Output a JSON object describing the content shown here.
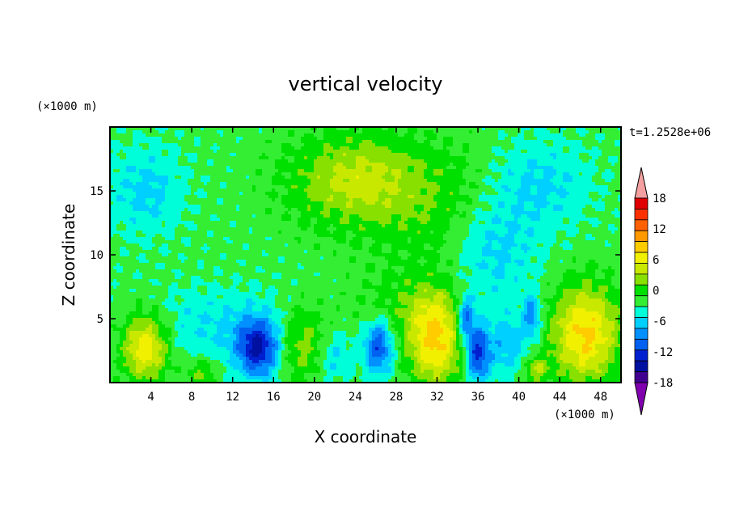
{
  "chart_data": {
    "type": "heatmap",
    "title": "vertical velocity",
    "xlabel": "X coordinate",
    "ylabel": "Z coordinate",
    "x_unit_label": "(×1000 m)",
    "y_unit_label": "(×1000 m)",
    "time_label": "t=1.2528e+06",
    "xlim": [
      0,
      50
    ],
    "ylim": [
      0,
      20
    ],
    "x_ticks": [
      "4",
      "8",
      "12",
      "16",
      "20",
      "24",
      "28",
      "32",
      "36",
      "40",
      "44",
      "48"
    ],
    "y_ticks": [
      "5",
      "10",
      "15"
    ],
    "colorbar": {
      "labels": [
        "18",
        "12",
        "6",
        "0",
        "-6",
        "-12",
        "-18"
      ],
      "levels": [
        -21,
        -18,
        -15,
        -12,
        -9,
        -6,
        -3,
        0,
        3,
        6,
        9,
        12,
        15,
        18,
        21
      ],
      "colors": [
        "#8000b0",
        "#400090",
        "#0010a0",
        "#0020d0",
        "#0060f0",
        "#0090ff",
        "#00d0ff",
        "#00ffd8",
        "#33ee33",
        "#00e000",
        "#88e000",
        "#c8e800",
        "#f0f000",
        "#ffcc00",
        "#ff9900",
        "#ff6000",
        "#ff3000",
        "#e00000",
        "#f4a0a0"
      ]
    },
    "features": [
      {
        "x": 3.5,
        "z": 2.8,
        "value": 14,
        "sx": 1.6,
        "sz": 1.8
      },
      {
        "x": 9.0,
        "z": 0.8,
        "value": 6,
        "sx": 1.0,
        "sz": 0.7
      },
      {
        "x": 14.5,
        "z": 2.7,
        "value": -16,
        "sx": 1.5,
        "sz": 1.6
      },
      {
        "x": 18.8,
        "z": 3.0,
        "value": 7,
        "sx": 1.8,
        "sz": 2.0
      },
      {
        "x": 22.0,
        "z": 2.0,
        "value": -5,
        "sx": 1.2,
        "sz": 1.4
      },
      {
        "x": 26.3,
        "z": 2.8,
        "value": -13,
        "sx": 1.0,
        "sz": 1.5
      },
      {
        "x": 31.8,
        "z": 3.5,
        "value": 15,
        "sx": 1.9,
        "sz": 2.6
      },
      {
        "x": 34.8,
        "z": 5.0,
        "value": -12,
        "sx": 0.6,
        "sz": 1.2
      },
      {
        "x": 36.0,
        "z": 2.3,
        "value": -14,
        "sx": 0.8,
        "sz": 1.6
      },
      {
        "x": 38.8,
        "z": 3.0,
        "value": -6,
        "sx": 1.5,
        "sz": 1.6
      },
      {
        "x": 41.3,
        "z": 5.2,
        "value": -9,
        "sx": 0.6,
        "sz": 1.2
      },
      {
        "x": 41.7,
        "z": 1.0,
        "value": 8,
        "sx": 0.8,
        "sz": 0.7
      },
      {
        "x": 46.5,
        "z": 3.8,
        "value": 15,
        "sx": 2.3,
        "sz": 2.6
      },
      {
        "x": 3.5,
        "z": 15.0,
        "value": -5,
        "sx": 2.6,
        "sz": 2.4
      },
      {
        "x": 24.0,
        "z": 15.8,
        "value": 9,
        "sx": 4.5,
        "sz": 2.5
      },
      {
        "x": 33.0,
        "z": 13.5,
        "value": 4,
        "sx": 5.0,
        "sz": 3.5
      },
      {
        "x": 37.5,
        "z": 10.5,
        "value": -6,
        "sx": 3.0,
        "sz": 3.0
      },
      {
        "x": 42.0,
        "z": 15.5,
        "value": -5,
        "sx": 3.5,
        "sz": 2.5
      },
      {
        "x": 10.0,
        "z": 4.5,
        "value": -4,
        "sx": 5.0,
        "sz": 2.0
      },
      {
        "x": 28.0,
        "z": 6.0,
        "value": 3,
        "sx": 3.0,
        "sz": 2.0
      }
    ]
  }
}
